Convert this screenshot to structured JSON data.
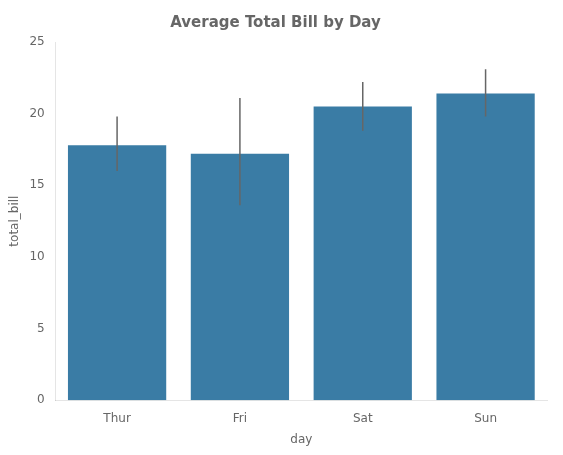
{
  "chart_data": {
    "type": "bar",
    "title": "Average Total Bill by Day",
    "xlabel": "day",
    "ylabel": "total_bill",
    "categories": [
      "Thur",
      "Fri",
      "Sat",
      "Sun"
    ],
    "values": [
      17.8,
      17.2,
      20.5,
      21.4
    ],
    "ci_lower": [
      16.0,
      13.6,
      18.8,
      19.8
    ],
    "ci_upper": [
      19.8,
      21.1,
      22.2,
      23.1
    ],
    "color": "#3a7ca5",
    "ylim": [
      0,
      25
    ],
    "yticks": [
      0,
      5,
      10,
      15,
      20,
      25
    ],
    "grid": false
  }
}
